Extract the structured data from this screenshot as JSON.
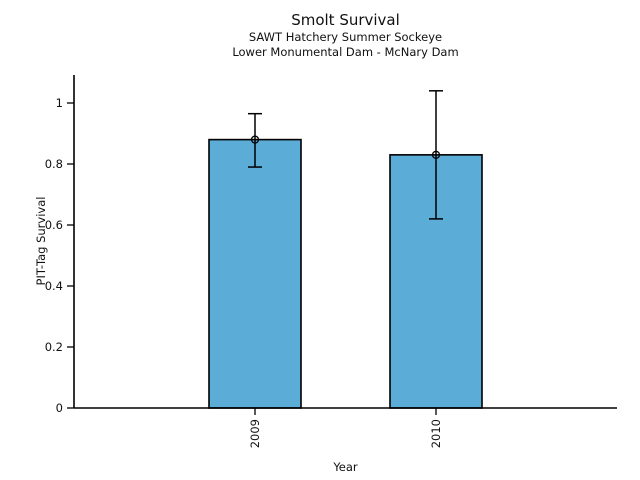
{
  "header": {
    "title": "Smolt Survival",
    "subtitle1": "SAWT Hatchery Summer Sockeye",
    "subtitle2": "Lower Monumental Dam - McNary Dam"
  },
  "chart_data": {
    "type": "bar",
    "title": "Smolt Survival",
    "subtitle": [
      "SAWT Hatchery Summer Sockeye",
      "Lower Monumental Dam - McNary Dam"
    ],
    "categories": [
      "2009",
      "2010"
    ],
    "values": [
      0.88,
      0.83
    ],
    "error_low": [
      0.79,
      0.62
    ],
    "error_high": [
      0.965,
      1.04
    ],
    "xlabel": "Year",
    "ylabel": "PIT-Tag Survival",
    "ylim": [
      0,
      1.09
    ],
    "yticks": [
      "0",
      "0.2",
      "0.4",
      "0.6",
      "0.8",
      "1"
    ],
    "ytick_values": [
      0,
      0.2,
      0.4,
      0.6,
      0.8,
      1
    ],
    "xtick_rotation_deg": 90,
    "grid": false,
    "legend": null,
    "marker": "open-circle",
    "bar_color": "#5BACD6",
    "bar_edge_color": "#000000",
    "axis_color": "#000000"
  }
}
